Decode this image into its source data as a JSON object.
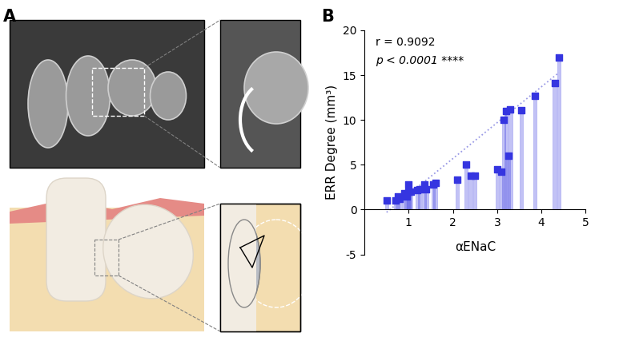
{
  "panel_labels": [
    "A",
    "B"
  ],
  "chart_data": {
    "type": "scatter",
    "x": [
      0.5,
      0.7,
      0.75,
      0.8,
      0.9,
      0.95,
      1.0,
      1.0,
      1.05,
      1.2,
      1.25,
      1.35,
      1.4,
      1.55,
      1.6,
      2.1,
      2.3,
      2.4,
      2.5,
      3.0,
      3.1,
      3.15,
      3.2,
      3.25,
      3.3,
      3.55,
      3.85,
      4.3,
      4.4
    ],
    "values": [
      1.0,
      1.0,
      1.5,
      1.2,
      1.8,
      1.5,
      2.0,
      2.8,
      2.0,
      2.2,
      2.3,
      2.8,
      2.3,
      2.8,
      3.0,
      3.3,
      5.0,
      3.8,
      3.8,
      4.5,
      4.2,
      10.0,
      11.0,
      6.0,
      11.2,
      11.1,
      12.7,
      14.1,
      17.0
    ],
    "color": "#3535e0",
    "marker": "s",
    "x_label": "αENaC",
    "y_label": "ERR Degree (mm³)",
    "xlim": [
      0,
      5
    ],
    "xticks": [
      1,
      2,
      3,
      4,
      5
    ],
    "ylim": [
      -5,
      20
    ],
    "yticks": [
      -5,
      0,
      5,
      10,
      15,
      20
    ],
    "annotations": [
      "r = 0.9092",
      "p < 0.0001 ****"
    ],
    "trend_line": {
      "x": [
        0.5,
        4.4
      ],
      "y": [
        -0.3,
        15.3
      ]
    }
  }
}
